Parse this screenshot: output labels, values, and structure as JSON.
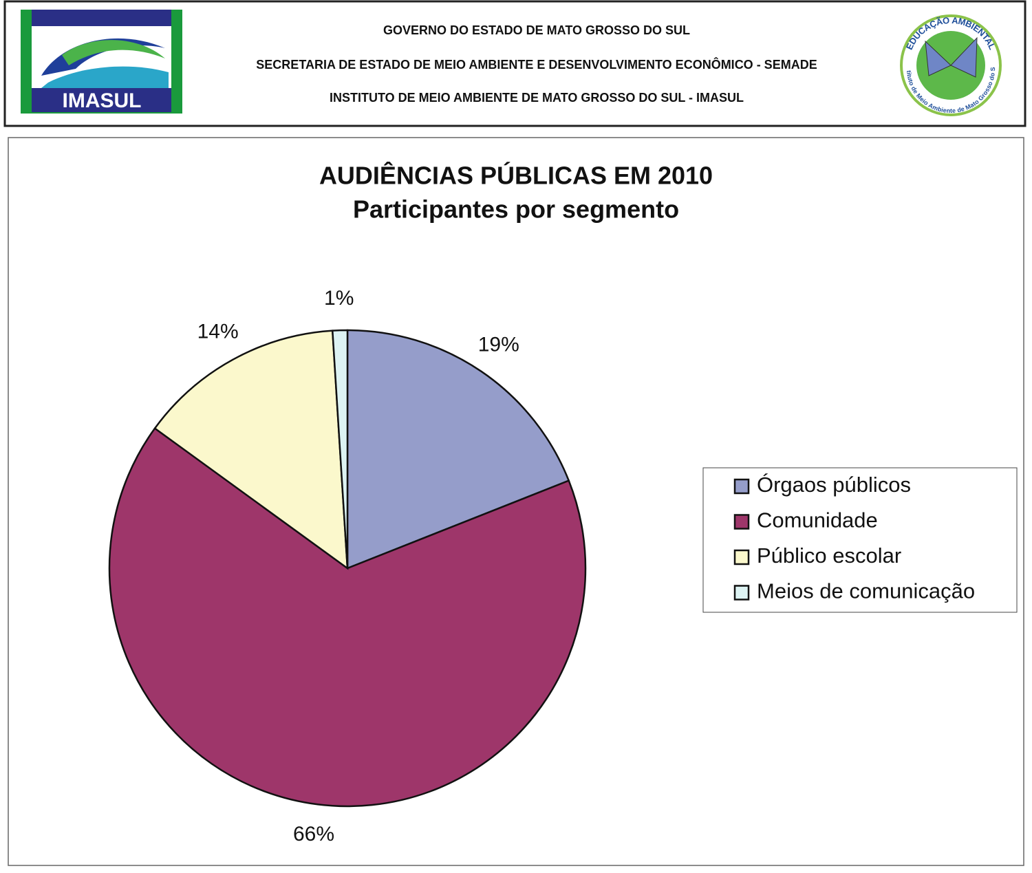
{
  "header": {
    "lines": [
      "GOVERNO DO ESTADO DE MATO GROSSO DO SUL",
      "SECRETARIA DE ESTADO DE MEIO AMBIENTE E DESENVOLVIMENTO ECONÔMICO - SEMADE",
      "INSTITUTO DE MEIO AMBIENTE DE MATO GROSSO DO SUL - IMASUL"
    ],
    "left_logo": "IMASUL",
    "right_logo": {
      "top": "EDUCAÇÃO AMBIENTAL",
      "bottom": "Instituto de Meio Ambiente de Mato Grosso do Sul"
    }
  },
  "chart_data": {
    "type": "pie",
    "title": "AUDIÊNCIAS PÚBLICAS EM 2010",
    "subtitle": "Participantes por segmento",
    "categories": [
      "Órgaos públicos",
      "Comunidade",
      "Público escolar",
      "Meios de comunicação"
    ],
    "values": [
      19,
      66,
      14,
      1
    ],
    "value_labels": [
      "19%",
      "66%",
      "14%",
      "1%"
    ],
    "colors": [
      "#959dca",
      "#9e366a",
      "#fbf8cc",
      "#ddf3f3"
    ],
    "legend": "right"
  }
}
